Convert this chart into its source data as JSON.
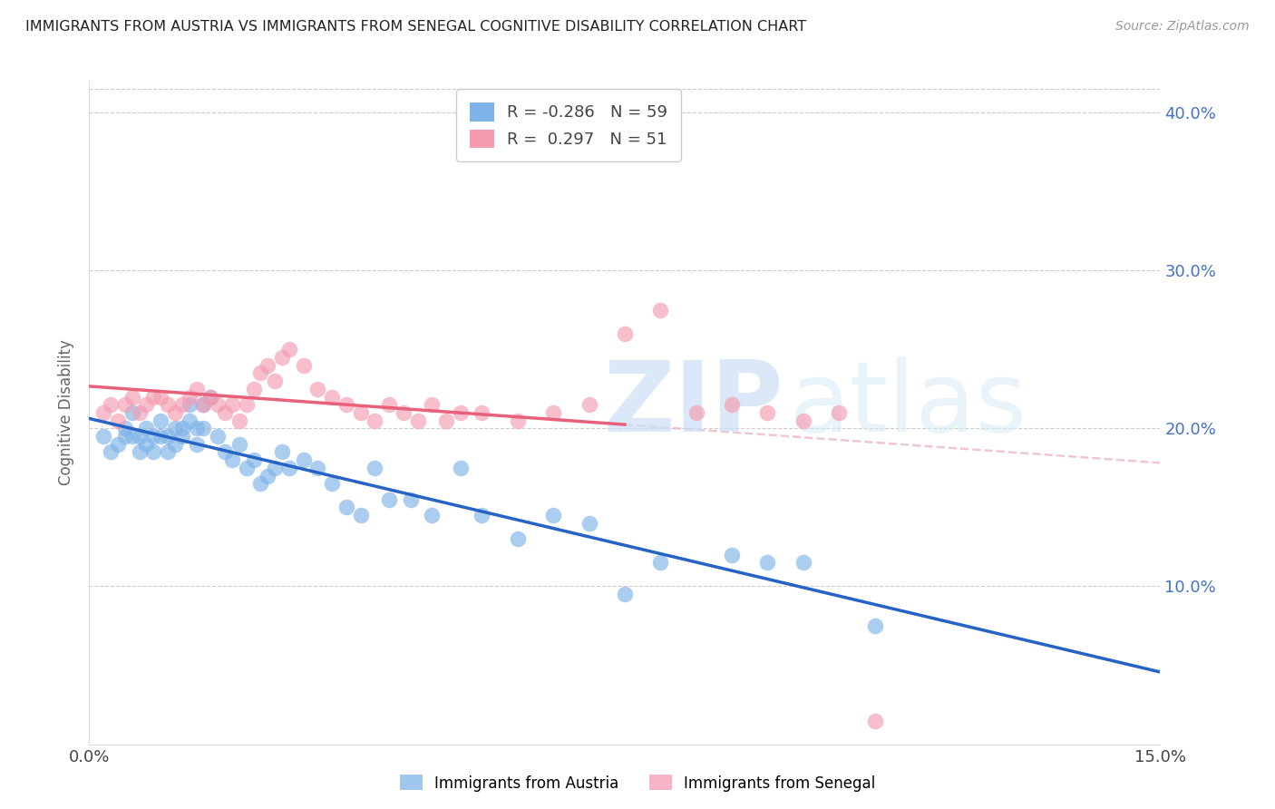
{
  "title": "IMMIGRANTS FROM AUSTRIA VS IMMIGRANTS FROM SENEGAL COGNITIVE DISABILITY CORRELATION CHART",
  "source": "Source: ZipAtlas.com",
  "ylabel": "Cognitive Disability",
  "xlim": [
    0.0,
    0.15
  ],
  "ylim": [
    0.0,
    0.42
  ],
  "austria_color": "#7fb3e8",
  "senegal_color": "#f49bb0",
  "austria_line_color": "#2563c4",
  "senegal_line_color": "#e8607a",
  "senegal_dash_color": "#e8b0c0",
  "legend_r_austria": "-0.286",
  "legend_n_austria": "59",
  "legend_r_senegal": "0.297",
  "legend_n_senegal": "51",
  "austria_scatter_x": [
    0.002,
    0.003,
    0.004,
    0.005,
    0.005,
    0.006,
    0.006,
    0.007,
    0.007,
    0.008,
    0.008,
    0.009,
    0.009,
    0.01,
    0.01,
    0.011,
    0.011,
    0.012,
    0.012,
    0.013,
    0.013,
    0.014,
    0.014,
    0.015,
    0.015,
    0.016,
    0.016,
    0.017,
    0.018,
    0.019,
    0.02,
    0.021,
    0.022,
    0.023,
    0.024,
    0.025,
    0.026,
    0.027,
    0.028,
    0.03,
    0.032,
    0.034,
    0.036,
    0.038,
    0.04,
    0.042,
    0.045,
    0.048,
    0.052,
    0.055,
    0.06,
    0.065,
    0.07,
    0.075,
    0.08,
    0.09,
    0.095,
    0.1,
    0.11
  ],
  "austria_scatter_y": [
    0.195,
    0.185,
    0.19,
    0.195,
    0.2,
    0.195,
    0.21,
    0.185,
    0.195,
    0.19,
    0.2,
    0.185,
    0.195,
    0.205,
    0.195,
    0.185,
    0.195,
    0.2,
    0.19,
    0.195,
    0.2,
    0.205,
    0.215,
    0.2,
    0.19,
    0.2,
    0.215,
    0.22,
    0.195,
    0.185,
    0.18,
    0.19,
    0.175,
    0.18,
    0.165,
    0.17,
    0.175,
    0.185,
    0.175,
    0.18,
    0.175,
    0.165,
    0.15,
    0.145,
    0.175,
    0.155,
    0.155,
    0.145,
    0.175,
    0.145,
    0.13,
    0.145,
    0.14,
    0.095,
    0.115,
    0.12,
    0.115,
    0.115,
    0.075
  ],
  "senegal_scatter_x": [
    0.002,
    0.003,
    0.004,
    0.005,
    0.006,
    0.007,
    0.008,
    0.009,
    0.01,
    0.011,
    0.012,
    0.013,
    0.014,
    0.015,
    0.016,
    0.017,
    0.018,
    0.019,
    0.02,
    0.021,
    0.022,
    0.023,
    0.024,
    0.025,
    0.026,
    0.027,
    0.028,
    0.03,
    0.032,
    0.034,
    0.036,
    0.038,
    0.04,
    0.042,
    0.044,
    0.046,
    0.048,
    0.05,
    0.052,
    0.055,
    0.06,
    0.065,
    0.07,
    0.075,
    0.08,
    0.085,
    0.09,
    0.095,
    0.1,
    0.105,
    0.11
  ],
  "senegal_scatter_y": [
    0.21,
    0.215,
    0.205,
    0.215,
    0.22,
    0.21,
    0.215,
    0.22,
    0.22,
    0.215,
    0.21,
    0.215,
    0.22,
    0.225,
    0.215,
    0.22,
    0.215,
    0.21,
    0.215,
    0.205,
    0.215,
    0.225,
    0.235,
    0.24,
    0.23,
    0.245,
    0.25,
    0.24,
    0.225,
    0.22,
    0.215,
    0.21,
    0.205,
    0.215,
    0.21,
    0.205,
    0.215,
    0.205,
    0.21,
    0.21,
    0.205,
    0.21,
    0.215,
    0.26,
    0.275,
    0.21,
    0.215,
    0.21,
    0.205,
    0.21,
    0.015
  ]
}
